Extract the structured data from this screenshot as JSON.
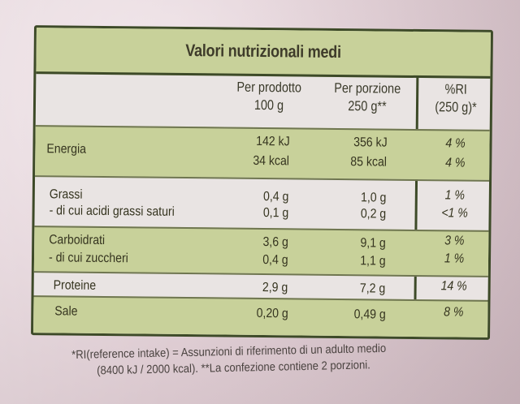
{
  "title": "Valori nutrizionali medi",
  "headers": {
    "per_product": [
      "Per prodotto",
      "100 g"
    ],
    "per_portion": [
      "Per porzione",
      "250 g**"
    ],
    "ri": [
      "%RI",
      "(250 g)*"
    ]
  },
  "rows": [
    {
      "label": "Energia",
      "per_product": "142 kJ",
      "per_portion": "356 kJ",
      "ri": "4 %"
    },
    {
      "label": "",
      "per_product": "34 kcal",
      "per_portion": "85 kcal",
      "ri": "4 %"
    },
    {
      "label": "Grassi",
      "per_product": "0,4 g",
      "per_portion": "1,0 g",
      "ri": "1 %"
    },
    {
      "label": "- di cui acidi grassi saturi",
      "per_product": "0,1 g",
      "per_portion": "0,2 g",
      "ri": "<1 %"
    },
    {
      "label": "Carboidrati",
      "per_product": "3,6 g",
      "per_portion": "9,1 g",
      "ri": "3 %"
    },
    {
      "label": "- di cui zuccheri",
      "per_product": "0,4 g",
      "per_portion": "1,1 g",
      "ri": "1 %"
    },
    {
      "label": "Proteine",
      "per_product": "2,9 g",
      "per_portion": "7,2 g",
      "ri": "14 %"
    },
    {
      "label": "Sale",
      "per_product": "0,20 g",
      "per_portion": "0,49 g",
      "ri": "8 %"
    }
  ],
  "footnote": {
    "line1": "*RI(reference intake) = Assunzioni di riferimento di un adulto medio",
    "line2": "(8400 kJ / 2000 kcal).  **La confezione contiene 2 porzioni."
  },
  "colors": {
    "band": "#c8d19a",
    "border": "#3d4a28",
    "background": "#e9e4e3"
  }
}
